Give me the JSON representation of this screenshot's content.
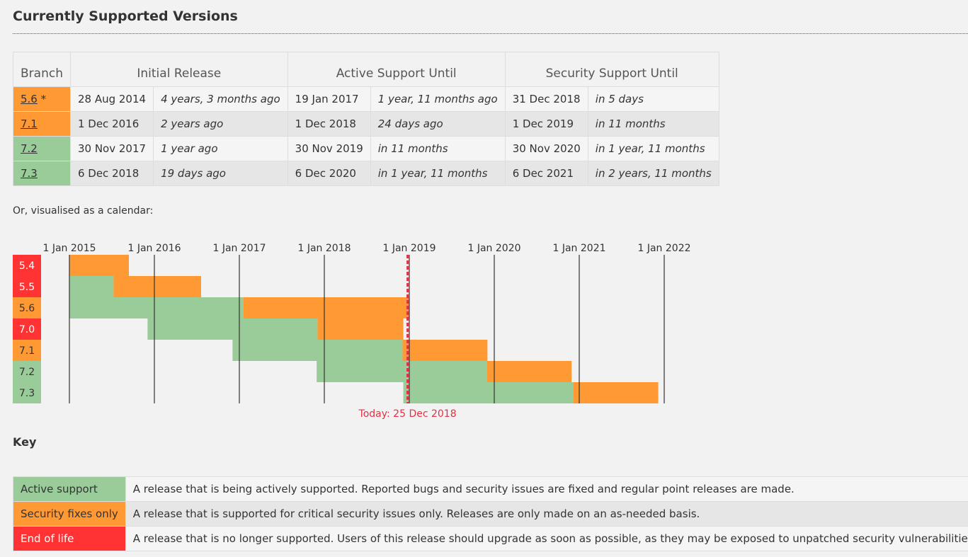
{
  "title": "Currently Supported Versions",
  "table": {
    "headers": [
      "Branch",
      "Initial Release",
      "Active Support Until",
      "Security Support Until"
    ],
    "rows": [
      {
        "branch": "5.6",
        "note": "*",
        "status": "security",
        "initial": "28 Aug 2014",
        "initial_rel": "4 years, 3 months ago",
        "active": "19 Jan 2017",
        "active_rel": "1 year, 11 months ago",
        "security": "31 Dec 2018",
        "security_rel": "in 5 days"
      },
      {
        "branch": "7.1",
        "note": "",
        "status": "security",
        "initial": "1 Dec 2016",
        "initial_rel": "2 years ago",
        "active": "1 Dec 2018",
        "active_rel": "24 days ago",
        "security": "1 Dec 2019",
        "security_rel": "in 11 months"
      },
      {
        "branch": "7.2",
        "note": "",
        "status": "active",
        "initial": "30 Nov 2017",
        "initial_rel": "1 year ago",
        "active": "30 Nov 2019",
        "active_rel": "in 11 months",
        "security": "30 Nov 2020",
        "security_rel": "in 1 year, 11 months"
      },
      {
        "branch": "7.3",
        "note": "",
        "status": "active",
        "initial": "6 Dec 2018",
        "initial_rel": "19 days ago",
        "active": "6 Dec 2020",
        "active_rel": "in 1 year, 11 months",
        "security": "6 Dec 2021",
        "security_rel": "in 2 years, 11 months"
      }
    ]
  },
  "intro": "Or, visualised as a calendar:",
  "calendar": {
    "years": [
      "1 Jan 2015",
      "1 Jan 2016",
      "1 Jan 2017",
      "1 Jan 2018",
      "1 Jan 2019",
      "1 Jan 2020",
      "1 Jan 2021",
      "1 Jan 2022"
    ],
    "start_year": 2015,
    "today": "Today: 25 Dec 2018",
    "today_value": 2018.98,
    "branches": [
      {
        "name": "5.4",
        "status": "eol",
        "active_end": 2014.7,
        "security_end": 2015.7
      },
      {
        "name": "5.5",
        "status": "eol",
        "active_end": 2015.52,
        "security_end": 2016.55
      },
      {
        "name": "5.6",
        "status": "security",
        "start": 2014.66,
        "active_end": 2017.05,
        "security_end": 2019.0
      },
      {
        "name": "7.0",
        "status": "eol",
        "start": 2015.92,
        "active_end": 2017.92,
        "security_end": 2018.93
      },
      {
        "name": "7.1",
        "status": "security",
        "start": 2016.92,
        "active_end": 2018.92,
        "security_end": 2019.92
      },
      {
        "name": "7.2",
        "status": "active",
        "start": 2017.91,
        "active_end": 2019.91,
        "security_end": 2020.91
      },
      {
        "name": "7.3",
        "status": "active",
        "start": 2018.93,
        "active_end": 2020.93,
        "security_end": 2021.93
      }
    ]
  },
  "key": {
    "title": "Key",
    "items": [
      {
        "label": "Active support",
        "status": "active",
        "desc": "A release that is being actively supported. Reported bugs and security issues are fixed and regular point releases are made."
      },
      {
        "label": "Security fixes only",
        "status": "security",
        "desc": "A release that is supported for critical security issues only. Releases are only made on an as-needed basis."
      },
      {
        "label": "End of life",
        "status": "eol",
        "desc": "A release that is no longer supported. Users of this release should upgrade as soon as possible, as they may be exposed to unpatched security vulnerabilities."
      }
    ]
  },
  "colors": {
    "active": "#99cc99",
    "security": "#ff9933",
    "eol": "#ff3333",
    "today": "#dd3344"
  }
}
